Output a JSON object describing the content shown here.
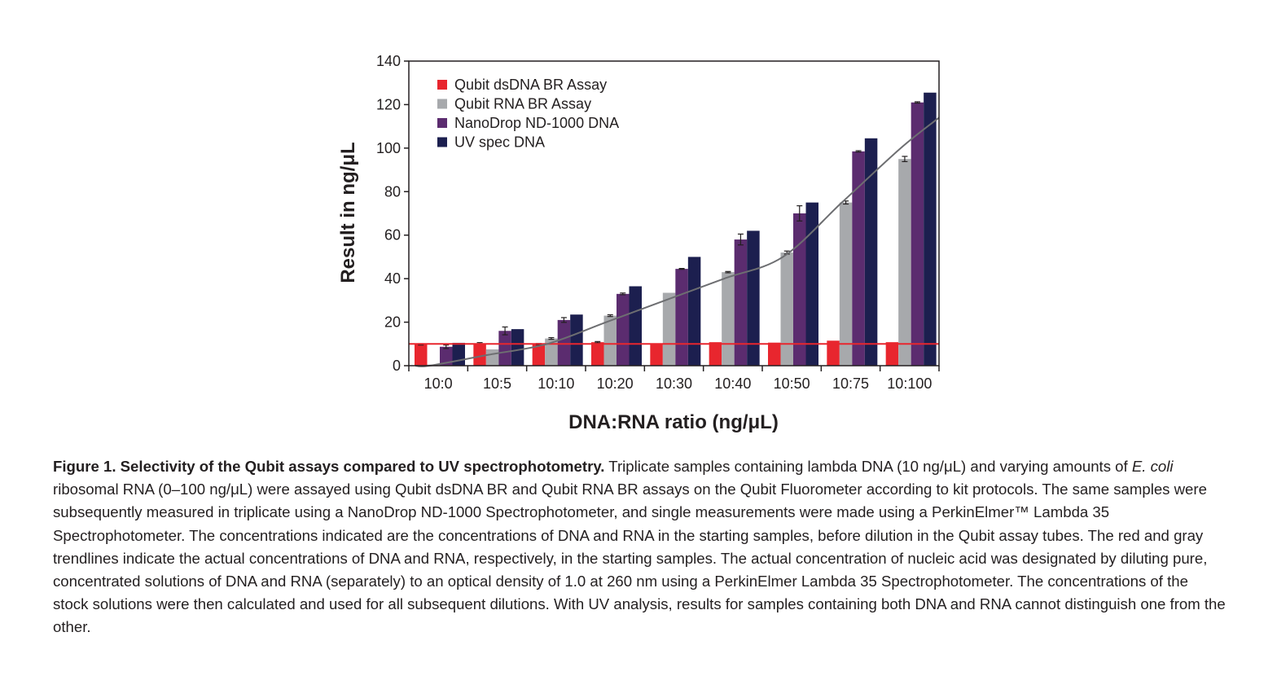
{
  "chart_data": {
    "type": "bar",
    "categories": [
      "10:0",
      "10:5",
      "10:10",
      "10:20",
      "10:30",
      "10:40",
      "10:50",
      "10:75",
      "10:100"
    ],
    "series": [
      {
        "name": "Qubit dsDNA BR Assay",
        "color": "#e8262e",
        "values": [
          9.8,
          10.3,
          9.9,
          10.8,
          10,
          10.8,
          10.6,
          11.5,
          10.8
        ],
        "errors": [
          0.3,
          0.3,
          0.3,
          0.3,
          0,
          0,
          0,
          0,
          0
        ]
      },
      {
        "name": "Qubit RNA BR Assay",
        "color": "#a7a9ac",
        "values": [
          0.5,
          7.5,
          12.5,
          23,
          33.5,
          43,
          52,
          75,
          95
        ],
        "errors": [
          0,
          0,
          0.4,
          0.4,
          0,
          0.3,
          0.7,
          0.7,
          1.2
        ]
      },
      {
        "name": "NanoDrop ND-1000 DNA",
        "color": "#5b2c6f",
        "values": [
          8.7,
          16,
          21,
          33,
          44.5,
          58,
          70,
          98.5,
          121
        ],
        "errors": [
          0.8,
          1.8,
          1.1,
          0.4,
          0.2,
          2.5,
          3.5,
          0.3,
          0.3
        ]
      },
      {
        "name": "UV spec DNA",
        "color": "#1c1f4f",
        "values": [
          10.5,
          16.8,
          23.5,
          36.5,
          50,
          62,
          75,
          104.5,
          125.5
        ],
        "errors": [
          0,
          0,
          0,
          0,
          0,
          0,
          0,
          0,
          0
        ]
      }
    ],
    "trendlines": [
      {
        "name": "Actual DNA concentration",
        "color": "#e8262e",
        "y": 10
      },
      {
        "name": "Actual RNA concentration",
        "color": "#6d6e71",
        "points": [
          [
            0,
            0
          ],
          [
            5,
            5
          ],
          [
            10,
            10
          ],
          [
            20,
            20
          ],
          [
            30,
            30
          ],
          [
            40,
            40
          ],
          [
            50,
            50
          ],
          [
            75,
            75
          ],
          [
            100,
            100
          ]
        ]
      }
    ],
    "title": "",
    "xlabel": "DNA:RNA ratio (ng/μL)",
    "ylabel": "Result in ng/μL",
    "ylim": [
      0,
      140
    ],
    "yticks": [
      0,
      20,
      40,
      60,
      80,
      100,
      120,
      140
    ],
    "legend_position": "top-left",
    "grid": false
  },
  "caption": {
    "bold": "Figure 1. Selectivity of the Qubit assays compared to UV spectrophotometry.",
    "text1": " Triplicate samples containing lambda DNA (10 ng/μL) and varying amounts of ",
    "italic": "E. coli",
    "text2": " ribosomal RNA (0–100 ng/μL) were assayed using Qubit dsDNA BR and Qubit RNA BR assays on the Qubit Fluorometer according to kit protocols. The same samples were subsequently measured in triplicate using a NanoDrop ND-1000 Spectrophotometer, and single measurements were made using a PerkinElmer™ Lambda 35 Spectrophotometer. The concentrations indicated are the concentrations of DNA and RNA in the starting samples, before dilution in the Qubit assay tubes. The red and gray trendlines indicate the actual concentrations of DNA and RNA, respectively, in the starting samples. The actual concentration of nucleic acid was designated by diluting pure, concentrated solutions of DNA and RNA (separately) to an optical density of 1.0 at 260 nm using a PerkinElmer Lambda 35 Spectrophotometer. The concentrations of the stock solutions were then calculated and used for all subsequent dilutions. With UV analysis, results for samples containing both DNA and RNA cannot distinguish one from the other."
  }
}
